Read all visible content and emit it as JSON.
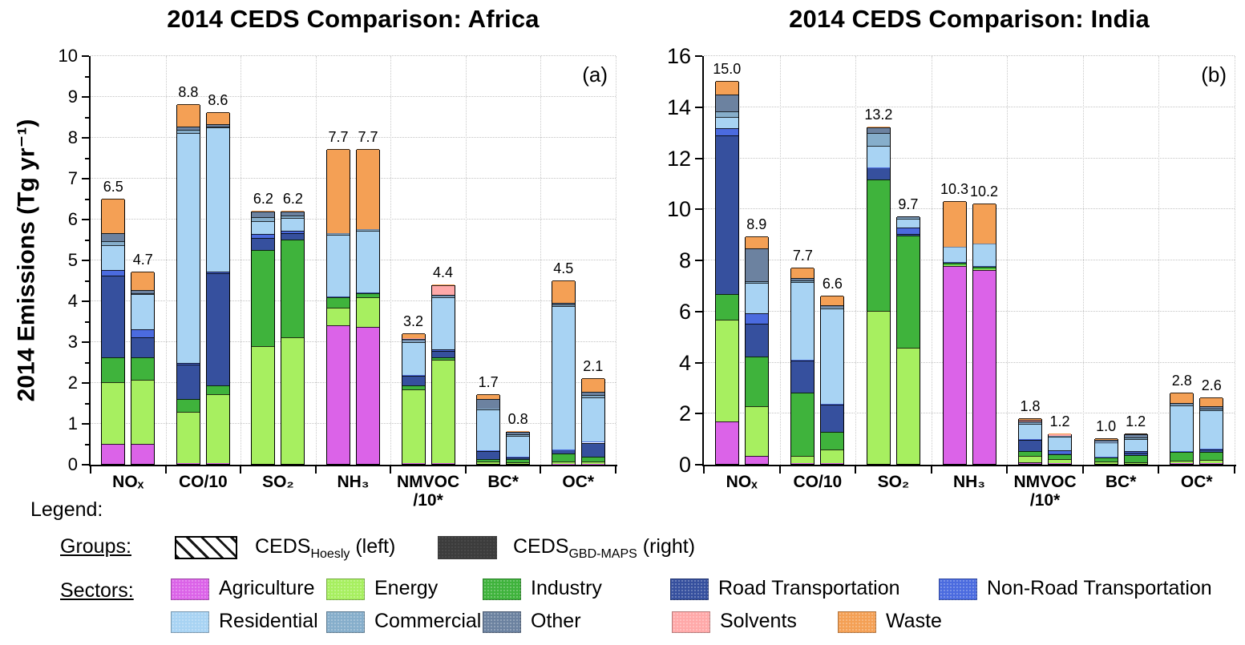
{
  "legend": {
    "title": "Legend:",
    "groups_label": "Groups:",
    "sectors_label": "Sectors:",
    "groups": [
      {
        "prefix": "CEDS",
        "subscript": "Hoesly",
        "suffix": " (left)",
        "swatch": "hatched"
      },
      {
        "prefix": "CEDS",
        "subscript": "GBD-MAPS",
        "suffix": " (right)",
        "swatch": "dark",
        "color": "#3C3C3C"
      }
    ]
  },
  "sectors": [
    {
      "name": "Agriculture",
      "color": "#DB63E8"
    },
    {
      "name": "Energy",
      "color": "#A7EF60"
    },
    {
      "name": "Industry",
      "color": "#3FB33C"
    },
    {
      "name": "Road Transportation",
      "color": "#36509E"
    },
    {
      "name": "Non-Road Transportation",
      "color": "#4B6BDF"
    },
    {
      "name": "Residential",
      "color": "#A8D3F3"
    },
    {
      "name": "Commercial",
      "color": "#86AECB"
    },
    {
      "name": "Other",
      "color": "#6C82A0"
    },
    {
      "name": "Solvents",
      "color": "#FFA9A9"
    },
    {
      "name": "Waste",
      "color": "#F4A055"
    }
  ],
  "chart_data": [
    {
      "type": "bar",
      "stacked": true,
      "title": "2014 CEDS Comparison: Africa",
      "panel_label": "(a)",
      "ylabel": "2014 Emissions (Tg yr⁻¹)",
      "ylim": [
        0,
        10
      ],
      "ytick_interval": 1,
      "minor_tick_interval": 0.5,
      "grid": true,
      "categories": [
        "NOₓ",
        "CO/10",
        "SO₂",
        "NH₃",
        "NMVOC\n/10*",
        "BC*",
        "OC*"
      ],
      "sector_order": [
        "Agriculture",
        "Energy",
        "Industry",
        "Road Transportation",
        "Non-Road Transportation",
        "Residential",
        "Commercial",
        "Other",
        "Solvents",
        "Waste"
      ],
      "groups": [
        {
          "name": "CEDS_Hoesly",
          "position": "left",
          "style": "hatched",
          "totals": [
            "6.5",
            "8.8",
            "6.2",
            "7.7",
            "3.2",
            "1.7",
            "4.5"
          ],
          "stacks": [
            [
              0.5,
              1.5,
              0.6,
              2.0,
              0.15,
              0.6,
              0.1,
              0.2,
              0,
              0.85
            ],
            [
              0.02,
              1.25,
              0.32,
              0.85,
              0.03,
              5.63,
              0.08,
              0.07,
              0,
              0.55
            ],
            [
              0,
              2.88,
              2.35,
              0.3,
              0.1,
              0.32,
              0.08,
              0.15,
              0,
              0.02
            ],
            [
              3.4,
              0.42,
              0.25,
              0.02,
              0,
              1.52,
              0.02,
              0.02,
              0,
              2.05
            ],
            [
              0.02,
              1.8,
              0.1,
              0.23,
              0.02,
              0.82,
              0.02,
              0.05,
              0.02,
              0.12
            ],
            [
              0,
              0.05,
              0.06,
              0.21,
              0.01,
              1.0,
              0.02,
              0.24,
              0,
              0.11
            ],
            [
              0.01,
              0.04,
              0.2,
              0.1,
              0.01,
              3.51,
              0.03,
              0.05,
              0,
              0.55
            ]
          ]
        },
        {
          "name": "CEDS_GBD-MAPS",
          "position": "right",
          "style": "solid",
          "totals": [
            "4.7",
            "8.6",
            "6.2",
            "7.7",
            "4.4",
            "0.8",
            "2.1"
          ],
          "stacks": [
            [
              0.5,
              1.55,
              0.55,
              0.5,
              0.2,
              0.85,
              0.03,
              0.07,
              0,
              0.45
            ],
            [
              0.02,
              1.68,
              0.22,
              2.75,
              0.03,
              3.53,
              0.03,
              0.05,
              0,
              0.29
            ],
            [
              0,
              3.1,
              2.4,
              0.15,
              0.05,
              0.32,
              0.05,
              0.11,
              0,
              0.02
            ],
            [
              3.35,
              0.72,
              0.1,
              0.02,
              0,
              1.52,
              0.02,
              0.02,
              0,
              1.95
            ],
            [
              0.02,
              2.52,
              0.07,
              0.15,
              0.05,
              1.26,
              0.02,
              0.05,
              0.24,
              0.02
            ],
            [
              0,
              0.03,
              0.08,
              0.05,
              0.01,
              0.52,
              0.04,
              0.05,
              0,
              0.02
            ],
            [
              0.01,
              0.05,
              0.11,
              0.35,
              0.02,
              1.08,
              0.07,
              0.08,
              0,
              0.33
            ]
          ]
        }
      ]
    },
    {
      "type": "bar",
      "stacked": true,
      "title": "2014 CEDS Comparison: India",
      "panel_label": "(b)",
      "ylabel": "2014 Emissions (Tg yr⁻¹)",
      "ylim": [
        0,
        16
      ],
      "ytick_interval": 2,
      "minor_tick_interval": null,
      "grid": true,
      "categories": [
        "NOₓ",
        "CO/10",
        "SO₂",
        "NH₃",
        "NMVOC\n/10*",
        "BC*",
        "OC*"
      ],
      "sector_order": [
        "Agriculture",
        "Energy",
        "Industry",
        "Road Transportation",
        "Non-Road Transportation",
        "Residential",
        "Commercial",
        "Other",
        "Solvents",
        "Waste"
      ],
      "groups": [
        {
          "name": "CEDS_Hoesly",
          "position": "left",
          "style": "hatched",
          "totals": [
            "15.0",
            "7.7",
            "13.2",
            "10.3",
            "1.8",
            "1.0",
            "2.8"
          ],
          "stacks": [
            [
              1.65,
              4.0,
              1.0,
              6.2,
              0.3,
              0.45,
              0.2,
              0.65,
              0,
              0.55
            ],
            [
              0.03,
              0.27,
              2.5,
              1.25,
              0.02,
              3.05,
              0.05,
              0.1,
              0,
              0.43
            ],
            [
              0,
              6.0,
              5.15,
              0.45,
              0.02,
              0.85,
              0.5,
              0.22,
              0,
              0.01
            ],
            [
              7.75,
              0.02,
              0.12,
              0.02,
              0,
              0.58,
              0.01,
              0.01,
              0,
              1.79
            ],
            [
              0.05,
              0.25,
              0.2,
              0.45,
              0.02,
              0.6,
              0.02,
              0.07,
              0.06,
              0.08
            ],
            [
              0,
              0.1,
              0.15,
              0.02,
              0.01,
              0.53,
              0.02,
              0.1,
              0,
              0.07
            ],
            [
              0.02,
              0.12,
              0.33,
              0.03,
              0.01,
              1.78,
              0.02,
              0.08,
              0,
              0.41
            ]
          ]
        },
        {
          "name": "CEDS_GBD-MAPS",
          "position": "right",
          "style": "solid",
          "totals": [
            "8.9",
            "6.6",
            "9.7",
            "10.2",
            "1.2",
            "1.2",
            "2.6"
          ],
          "stacks": [
            [
              0.3,
              1.95,
              1.95,
              1.3,
              0.4,
              1.2,
              0.05,
              1.3,
              0,
              0.45
            ],
            [
              0.02,
              0.55,
              0.7,
              1.05,
              0.02,
              3.75,
              0.03,
              0.1,
              0,
              0.38
            ],
            [
              0,
              4.55,
              4.4,
              0.05,
              0.25,
              0.35,
              0.03,
              0.07,
              0,
              0
            ],
            [
              7.6,
              0.02,
              0.1,
              0.02,
              0,
              0.88,
              0.01,
              0.01,
              0,
              1.56
            ],
            [
              0.02,
              0.17,
              0.2,
              0.02,
              0.12,
              0.55,
              0.01,
              0.02,
              0.07,
              0.02
            ],
            [
              0,
              0.05,
              0.3,
              0.1,
              0.05,
              0.48,
              0.05,
              0.12,
              0,
              0.05
            ],
            [
              0.02,
              0.14,
              0.32,
              0.1,
              0.02,
              1.5,
              0.05,
              0.1,
              0,
              0.35
            ]
          ]
        }
      ]
    }
  ]
}
